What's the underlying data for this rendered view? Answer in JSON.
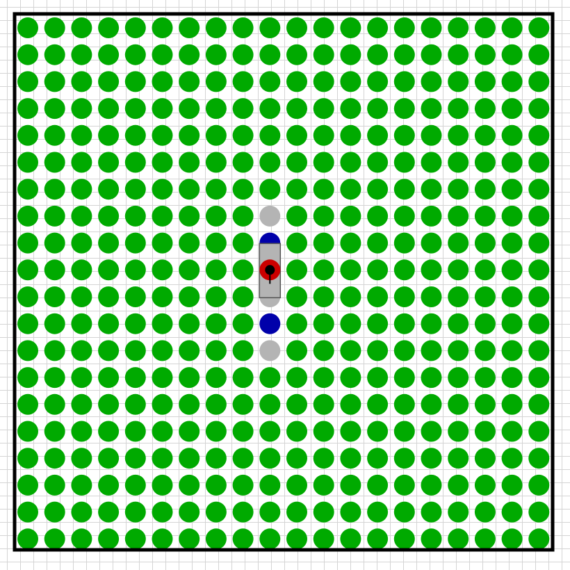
{
  "grid": {
    "rows": 20,
    "cols": 20
  },
  "colors": {
    "background": "#ffffff",
    "grid_line": "#d4d4d4",
    "border": "#000000",
    "food": "#00aa00",
    "empty": "#b4b4b4",
    "blue": "#0000aa",
    "agent": "#cc0000",
    "agent_center": "#000000",
    "cart": "#b4b4b4"
  },
  "agent": {
    "row": 9,
    "col": 9,
    "facing": "down",
    "icon": "agent-icon"
  },
  "cart": {
    "row": 9,
    "col": 9,
    "row_span": 2,
    "icon": "cart-icon"
  },
  "cells": [
    {
      "row": 7,
      "col": 9,
      "type": "empty"
    },
    {
      "row": 8,
      "col": 9,
      "type": "blue"
    },
    {
      "row": 9,
      "col": 9,
      "type": "none"
    },
    {
      "row": 10,
      "col": 9,
      "type": "empty"
    },
    {
      "row": 11,
      "col": 9,
      "type": "blue"
    },
    {
      "row": 12,
      "col": 9,
      "type": "empty"
    }
  ],
  "default_cell": "food"
}
